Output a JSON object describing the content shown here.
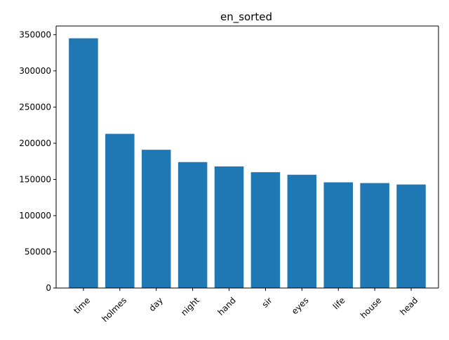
{
  "chart_data": {
    "type": "bar",
    "title": "en_sorted",
    "xlabel": "",
    "ylabel": "",
    "categories": [
      "time",
      "holmes",
      "day",
      "night",
      "hand",
      "sir",
      "eyes",
      "life",
      "house",
      "head"
    ],
    "values": [
      345000,
      213000,
      191000,
      174000,
      168000,
      160000,
      156500,
      146000,
      145000,
      143000
    ],
    "ylim": [
      0,
      362000
    ],
    "yticks": [
      0,
      50000,
      100000,
      150000,
      200000,
      250000,
      300000,
      350000
    ],
    "ytick_labels": [
      "0",
      "50000",
      "100000",
      "150000",
      "200000",
      "250000",
      "300000",
      "350000"
    ],
    "grid": false,
    "xtick_rotation": 45,
    "bar_color": "#1f77b4",
    "axis_color": "#000000"
  }
}
